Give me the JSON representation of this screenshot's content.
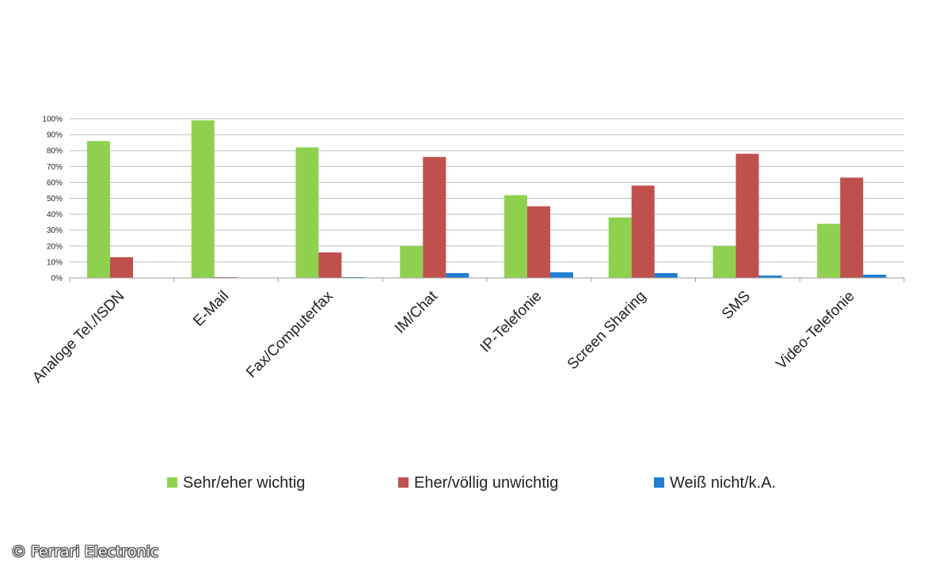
{
  "chart_data": {
    "type": "bar",
    "categories": [
      "Analoge Tel./ISDN",
      "E-Mail",
      "Fax/Computerfax",
      "IM/Chat",
      "IP-Telefonie",
      "Screen Sharing",
      "SMS",
      "Video-Telefonie"
    ],
    "series": [
      {
        "name": "Sehr/eher wichtig",
        "color": "#8fd14f",
        "values": [
          86,
          99,
          82,
          20,
          52,
          38,
          20,
          34
        ]
      },
      {
        "name": "Eher/völlig unwichtig",
        "color": "#c0504d",
        "values": [
          13,
          0.5,
          16,
          76,
          45,
          58,
          78,
          63
        ]
      },
      {
        "name": "Weiß nicht/k.A.",
        "color": "#1f7fd0",
        "values": [
          0,
          0,
          0.5,
          3,
          3.5,
          3,
          1.5,
          2
        ]
      }
    ],
    "yticks": [
      "0%",
      "10%",
      "20%",
      "30%",
      "40%",
      "50%",
      "60%",
      "70%",
      "80%",
      "90%",
      "100%"
    ],
    "ylim": [
      0,
      100
    ],
    "grid": true,
    "legend_position": "bottom",
    "title": "",
    "xlabel": "",
    "ylabel": ""
  },
  "copyright": "© Ferrari Electronic"
}
